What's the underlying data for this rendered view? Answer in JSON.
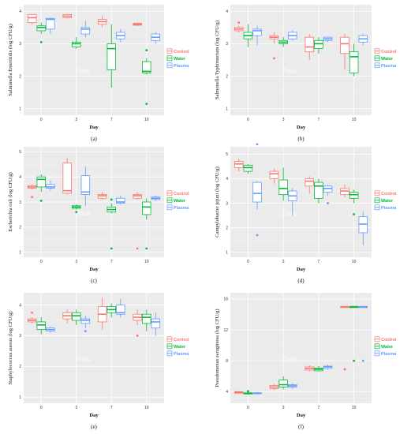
{
  "colors": {
    "Control": "#f8766d",
    "Water": "#00ba38",
    "Plasma": "#619cff",
    "panel_bg": "#ebebeb",
    "grid": "#ffffff"
  },
  "chart_data": [
    {
      "panel": "(a)",
      "type": "box",
      "ylabel": "Salmonella Enteritidis (log CFU/g)",
      "xlabel": "Day",
      "watermark": "Pork",
      "categories": [
        "0",
        "3",
        "7",
        "10"
      ],
      "yticks": [
        1,
        2,
        3,
        4
      ],
      "ylim": [
        0.8,
        4.2
      ],
      "legend": [
        "Control",
        "Water",
        "Plasma"
      ],
      "legend_position": "right",
      "series": [
        {
          "name": "Control",
          "boxes": [
            {
              "min": 3.6,
              "q1": 3.65,
              "median": 3.8,
              "q3": 3.9,
              "max": 3.92,
              "outliers": []
            },
            {
              "min": 3.78,
              "q1": 3.8,
              "median": 3.85,
              "q3": 3.9,
              "max": 3.92,
              "outliers": []
            },
            {
              "min": 3.5,
              "q1": 3.6,
              "median": 3.68,
              "q3": 3.75,
              "max": 3.85,
              "outliers": []
            },
            {
              "min": 3.55,
              "q1": 3.57,
              "median": 3.6,
              "q3": 3.63,
              "max": 3.65,
              "outliers": []
            }
          ]
        },
        {
          "name": "Water",
          "boxes": [
            {
              "min": 3.3,
              "q1": 3.4,
              "median": 3.5,
              "q3": 3.55,
              "max": 3.65,
              "outliers": [
                3.05
              ]
            },
            {
              "min": 2.85,
              "q1": 2.9,
              "median": 3.0,
              "q3": 3.05,
              "max": 3.2,
              "outliers": []
            },
            {
              "min": 1.65,
              "q1": 2.2,
              "median": 2.85,
              "q3": 3.0,
              "max": 3.6,
              "outliers": []
            },
            {
              "min": 2.05,
              "q1": 2.1,
              "median": 2.15,
              "q3": 2.45,
              "max": 2.55,
              "outliers": [
                2.8,
                1.15
              ]
            }
          ]
        },
        {
          "name": "Plasma",
          "boxes": [
            {
              "min": 3.3,
              "q1": 3.45,
              "median": 3.75,
              "q3": 3.78,
              "max": 3.8,
              "outliers": []
            },
            {
              "min": 3.2,
              "q1": 3.3,
              "median": 3.45,
              "q3": 3.5,
              "max": 3.7,
              "outliers": []
            },
            {
              "min": 3.05,
              "q1": 3.15,
              "median": 3.25,
              "q3": 3.35,
              "max": 3.45,
              "outliers": []
            },
            {
              "min": 3.0,
              "q1": 3.1,
              "median": 3.2,
              "q3": 3.3,
              "max": 3.35,
              "outliers": []
            }
          ]
        }
      ]
    },
    {
      "panel": "(b)",
      "type": "box",
      "ylabel": "Salmonella Typhimurium (log CFU/g)",
      "xlabel": "Day",
      "watermark": "Pork",
      "categories": [
        "0",
        "3",
        "7",
        "10"
      ],
      "yticks": [
        1,
        2,
        3,
        4
      ],
      "ylim": [
        0.8,
        4.2
      ],
      "legend": [
        "Control",
        "Water",
        "Plasma"
      ],
      "legend_position": "right",
      "series": [
        {
          "name": "Control",
          "boxes": [
            {
              "min": 3.35,
              "q1": 3.4,
              "median": 3.45,
              "q3": 3.5,
              "max": 3.55,
              "outliers": [
                3.65
              ]
            },
            {
              "min": 3.0,
              "q1": 3.15,
              "median": 3.2,
              "q3": 3.25,
              "max": 3.35,
              "outliers": [
                2.55
              ]
            },
            {
              "min": 2.5,
              "q1": 2.75,
              "median": 2.9,
              "q3": 3.2,
              "max": 3.3,
              "outliers": []
            },
            {
              "min": 2.2,
              "q1": 2.7,
              "median": 3.0,
              "q3": 3.2,
              "max": 3.3,
              "outliers": []
            }
          ]
        },
        {
          "name": "Water",
          "boxes": [
            {
              "min": 2.9,
              "q1": 3.15,
              "median": 3.25,
              "q3": 3.35,
              "max": 3.6,
              "outliers": []
            },
            {
              "min": 2.9,
              "q1": 3.0,
              "median": 3.05,
              "q3": 3.1,
              "max": 3.2,
              "outliers": []
            },
            {
              "min": 2.7,
              "q1": 2.85,
              "median": 3.0,
              "q3": 3.1,
              "max": 3.2,
              "outliers": []
            },
            {
              "min": 2.0,
              "q1": 2.1,
              "median": 2.6,
              "q3": 2.75,
              "max": 3.0,
              "outliers": []
            }
          ]
        },
        {
          "name": "Plasma",
          "boxes": [
            {
              "min": 2.95,
              "q1": 3.25,
              "median": 3.4,
              "q3": 3.45,
              "max": 3.55,
              "outliers": []
            },
            {
              "min": 3.1,
              "q1": 3.15,
              "median": 3.25,
              "q3": 3.35,
              "max": 3.4,
              "outliers": []
            },
            {
              "min": 3.05,
              "q1": 3.1,
              "median": 3.15,
              "q3": 3.2,
              "max": 3.22,
              "outliers": []
            },
            {
              "min": 2.95,
              "q1": 3.05,
              "median": 3.15,
              "q3": 3.25,
              "max": 3.3,
              "outliers": []
            }
          ]
        }
      ]
    },
    {
      "panel": "(c)",
      "type": "box",
      "ylabel": "Escherichia coli (log CFU/g)",
      "xlabel": "Day",
      "watermark": "Pork",
      "categories": [
        "0",
        "3",
        "7",
        "10"
      ],
      "yticks": [
        1,
        2,
        3,
        4,
        5
      ],
      "ylim": [
        0.8,
        5.2
      ],
      "legend": [
        "Control",
        "Water",
        "Plasma"
      ],
      "legend_position": "right",
      "series": [
        {
          "name": "Control",
          "boxes": [
            {
              "min": 3.5,
              "q1": 3.55,
              "median": 3.6,
              "q3": 3.65,
              "max": 3.7,
              "outliers": [
                3.2
              ]
            },
            {
              "min": 3.3,
              "q1": 3.35,
              "median": 3.45,
              "q3": 4.55,
              "max": 4.75,
              "outliers": []
            },
            {
              "min": 3.1,
              "q1": 3.15,
              "median": 3.25,
              "q3": 3.3,
              "max": 3.4,
              "outliers": []
            },
            {
              "min": 3.1,
              "q1": 3.15,
              "median": 3.25,
              "q3": 3.3,
              "max": 3.4,
              "outliers": [
                1.15
              ]
            }
          ]
        },
        {
          "name": "Water",
          "boxes": [
            {
              "min": 3.4,
              "q1": 3.6,
              "median": 3.9,
              "q3": 4.0,
              "max": 4.1,
              "outliers": [
                3.05
              ]
            },
            {
              "min": 2.7,
              "q1": 2.75,
              "median": 2.8,
              "q3": 2.85,
              "max": 2.9,
              "outliers": [
                2.6
              ]
            },
            {
              "min": 2.55,
              "q1": 2.6,
              "median": 2.7,
              "q3": 2.8,
              "max": 2.95,
              "outliers": [
                3.1,
                1.15
              ]
            },
            {
              "min": 2.3,
              "q1": 2.5,
              "median": 2.8,
              "q3": 3.0,
              "max": 3.15,
              "outliers": [
                1.15
              ]
            }
          ]
        },
        {
          "name": "Plasma",
          "boxes": [
            {
              "min": 3.45,
              "q1": 3.55,
              "median": 3.6,
              "q3": 3.7,
              "max": 3.85,
              "outliers": []
            },
            {
              "min": 2.85,
              "q1": 3.3,
              "median": 3.4,
              "q3": 4.05,
              "max": 4.4,
              "outliers": []
            },
            {
              "min": 2.9,
              "q1": 2.95,
              "median": 3.0,
              "q3": 3.15,
              "max": 3.25,
              "outliers": []
            },
            {
              "min": 3.05,
              "q1": 3.1,
              "median": 3.15,
              "q3": 3.2,
              "max": 3.25,
              "outliers": []
            }
          ]
        }
      ]
    },
    {
      "panel": "(d)",
      "type": "box",
      "ylabel": "Campylobacter jejuni (log CFU/g)",
      "xlabel": "Day",
      "watermark": "Pork",
      "categories": [
        "0",
        "3",
        "7",
        "10"
      ],
      "yticks": [
        1,
        2,
        3,
        4,
        5
      ],
      "ylim": [
        0.8,
        5.3
      ],
      "legend": [
        "Control",
        "Water",
        "Plasma"
      ],
      "legend_position": "right",
      "series": [
        {
          "name": "Control",
          "boxes": [
            {
              "min": 4.3,
              "q1": 4.45,
              "median": 4.6,
              "q3": 4.7,
              "max": 4.8,
              "outliers": []
            },
            {
              "min": 3.8,
              "q1": 4.0,
              "median": 4.2,
              "q3": 4.3,
              "max": 4.4,
              "outliers": []
            },
            {
              "min": 3.4,
              "q1": 3.7,
              "median": 3.9,
              "q3": 4.0,
              "max": 4.1,
              "outliers": []
            },
            {
              "min": 3.25,
              "q1": 3.35,
              "median": 3.5,
              "q3": 3.6,
              "max": 3.75,
              "outliers": []
            }
          ]
        },
        {
          "name": "Water",
          "boxes": [
            {
              "min": 4.2,
              "q1": 4.3,
              "median": 4.45,
              "q3": 4.55,
              "max": 4.6,
              "outliers": []
            },
            {
              "min": 3.1,
              "q1": 3.35,
              "median": 3.6,
              "q3": 3.95,
              "max": 4.45,
              "outliers": []
            },
            {
              "min": 3.0,
              "q1": 3.2,
              "median": 3.7,
              "q3": 3.85,
              "max": 4.0,
              "outliers": []
            },
            {
              "min": 3.0,
              "q1": 3.2,
              "median": 3.35,
              "q3": 3.45,
              "max": 3.55,
              "outliers": [
                2.55
              ]
            }
          ]
        },
        {
          "name": "Plasma",
          "boxes": [
            {
              "min": 2.75,
              "q1": 3.05,
              "median": 3.4,
              "q3": 3.85,
              "max": 3.9,
              "outliers": [
                5.4,
                1.7
              ]
            },
            {
              "min": 2.5,
              "q1": 3.1,
              "median": 3.3,
              "q3": 3.5,
              "max": 3.6,
              "outliers": []
            },
            {
              "min": 3.3,
              "q1": 3.45,
              "median": 3.6,
              "q3": 3.7,
              "max": 3.75,
              "outliers": [
                3.0
              ]
            },
            {
              "min": 1.3,
              "q1": 1.8,
              "median": 2.15,
              "q3": 2.45,
              "max": 2.65,
              "outliers": []
            }
          ]
        }
      ]
    },
    {
      "panel": "(e)",
      "type": "box",
      "ylabel": "Staphylococcus aureus (log CFU/g)",
      "xlabel": "Day",
      "watermark": "Pork",
      "categories": [
        "0",
        "3",
        "7",
        "10"
      ],
      "yticks": [
        1,
        2,
        3,
        4
      ],
      "ylim": [
        0.8,
        4.4
      ],
      "legend": [
        "Control",
        "Water",
        "Plasma"
      ],
      "legend_position": "right",
      "series": [
        {
          "name": "Control",
          "boxes": [
            {
              "min": 3.4,
              "q1": 3.45,
              "median": 3.5,
              "q3": 3.55,
              "max": 3.6,
              "outliers": [
                3.75
              ]
            },
            {
              "min": 3.4,
              "q1": 3.55,
              "median": 3.65,
              "q3": 3.75,
              "max": 3.85,
              "outliers": []
            },
            {
              "min": 3.2,
              "q1": 3.45,
              "median": 3.7,
              "q3": 3.95,
              "max": 4.25,
              "outliers": []
            },
            {
              "min": 3.35,
              "q1": 3.5,
              "median": 3.6,
              "q3": 3.7,
              "max": 3.85,
              "outliers": [
                3.0
              ]
            }
          ]
        },
        {
          "name": "Water",
          "boxes": [
            {
              "min": 3.05,
              "q1": 3.2,
              "median": 3.35,
              "q3": 3.45,
              "max": 3.6,
              "outliers": []
            },
            {
              "min": 3.35,
              "q1": 3.5,
              "median": 3.65,
              "q3": 3.75,
              "max": 3.85,
              "outliers": []
            },
            {
              "min": 3.6,
              "q1": 3.75,
              "median": 3.85,
              "q3": 3.95,
              "max": 4.05,
              "outliers": []
            },
            {
              "min": 3.15,
              "q1": 3.4,
              "median": 3.6,
              "q3": 3.7,
              "max": 3.85,
              "outliers": []
            }
          ]
        },
        {
          "name": "Plasma",
          "boxes": [
            {
              "min": 3.1,
              "q1": 3.15,
              "median": 3.2,
              "q3": 3.25,
              "max": 3.3,
              "outliers": []
            },
            {
              "min": 3.25,
              "q1": 3.4,
              "median": 3.5,
              "q3": 3.55,
              "max": 3.65,
              "outliers": [
                3.15
              ]
            },
            {
              "min": 3.6,
              "q1": 3.7,
              "median": 3.75,
              "q3": 4.0,
              "max": 4.2,
              "outliers": []
            },
            {
              "min": 3.0,
              "q1": 3.25,
              "median": 3.45,
              "q3": 3.55,
              "max": 3.75,
              "outliers": []
            }
          ]
        }
      ]
    },
    {
      "panel": "(f)",
      "type": "box",
      "ylabel": "Pseudomonas aeruginosa (log CFU/g)",
      "xlabel": "Day",
      "watermark": "Pork",
      "categories": [
        "0",
        "3",
        "7",
        "10"
      ],
      "yticks": [
        4,
        8,
        12,
        16
      ],
      "ylim": [
        2.5,
        16.8
      ],
      "legend": [
        "Control",
        "Water",
        "Plasma"
      ],
      "legend_position": "right",
      "series": [
        {
          "name": "Control",
          "boxes": [
            {
              "min": 3.75,
              "q1": 3.8,
              "median": 3.9,
              "q3": 4.0,
              "max": 4.05,
              "outliers": []
            },
            {
              "min": 4.2,
              "q1": 4.4,
              "median": 4.6,
              "q3": 4.8,
              "max": 5.0,
              "outliers": []
            },
            {
              "min": 6.6,
              "q1": 6.8,
              "median": 7.0,
              "q3": 7.2,
              "max": 7.4,
              "outliers": []
            },
            {
              "min": 14.9,
              "q1": 14.9,
              "median": 15.0,
              "q3": 15.0,
              "max": 15.0,
              "outliers": [
                6.9
              ]
            }
          ]
        },
        {
          "name": "Water",
          "boxes": [
            {
              "min": 3.6,
              "q1": 3.7,
              "median": 3.75,
              "q3": 3.85,
              "max": 3.95,
              "outliers": [
                4.05
              ]
            },
            {
              "min": 4.3,
              "q1": 4.6,
              "median": 4.9,
              "q3": 5.5,
              "max": 6.0,
              "outliers": []
            },
            {
              "min": 6.6,
              "q1": 6.7,
              "median": 6.9,
              "q3": 7.05,
              "max": 7.3,
              "outliers": []
            },
            {
              "min": 14.9,
              "q1": 14.9,
              "median": 15.0,
              "q3": 15.0,
              "max": 15.0,
              "outliers": [
                8.0
              ]
            }
          ]
        },
        {
          "name": "Plasma",
          "boxes": [
            {
              "min": 3.65,
              "q1": 3.75,
              "median": 3.8,
              "q3": 3.85,
              "max": 3.95,
              "outliers": []
            },
            {
              "min": 4.4,
              "q1": 4.6,
              "median": 4.75,
              "q3": 4.9,
              "max": 5.1,
              "outliers": []
            },
            {
              "min": 6.8,
              "q1": 7.0,
              "median": 7.2,
              "q3": 7.3,
              "max": 7.5,
              "outliers": []
            },
            {
              "min": 14.9,
              "q1": 14.9,
              "median": 15.0,
              "q3": 15.0,
              "max": 15.0,
              "outliers": [
                8.0
              ]
            }
          ]
        }
      ]
    }
  ]
}
